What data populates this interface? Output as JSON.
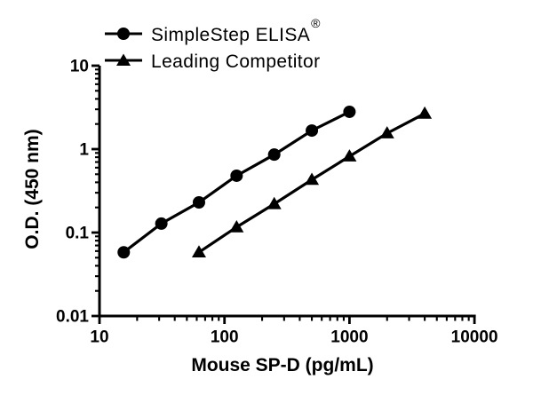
{
  "colors": {
    "ink": "#000000",
    "background": "#ffffff"
  },
  "legend": {
    "items": [
      {
        "label": "SimpleStep ELISA",
        "suffix": "®",
        "marker": "circle"
      },
      {
        "label": "Leading Competitor",
        "suffix": "",
        "marker": "triangle"
      }
    ]
  },
  "chart_data": {
    "type": "line",
    "x_scale": "log",
    "y_scale": "log",
    "title": "",
    "xlabel": "Mouse SP-D (pg/mL)",
    "ylabel": "O.D. (450 nm)",
    "xlim": [
      10,
      10000
    ],
    "ylim": [
      0.01,
      10
    ],
    "grid": false,
    "legend_position": "top-left",
    "x_tick_values": [
      10,
      100,
      1000,
      10000
    ],
    "x_tick_labels": [
      "10",
      "100",
      "1000",
      "10000"
    ],
    "y_tick_values": [
      0.01,
      0.1,
      1,
      10
    ],
    "y_tick_labels": [
      "0.01",
      "0.1",
      "1",
      "10"
    ],
    "series": [
      {
        "name": "SimpleStep ELISA®",
        "slug": "simplestep-elisa",
        "marker": "circle",
        "color": "#000000",
        "x": [
          15.63,
          31.25,
          62.5,
          125,
          250,
          500,
          1000
        ],
        "y": [
          0.058,
          0.128,
          0.23,
          0.48,
          0.86,
          1.67,
          2.8
        ]
      },
      {
        "name": "Leading Competitor",
        "slug": "leading-competitor",
        "marker": "triangle",
        "color": "#000000",
        "x": [
          62.5,
          125,
          250,
          500,
          1000,
          2000,
          4000
        ],
        "y": [
          0.058,
          0.116,
          0.22,
          0.43,
          0.82,
          1.55,
          2.67
        ]
      }
    ]
  }
}
